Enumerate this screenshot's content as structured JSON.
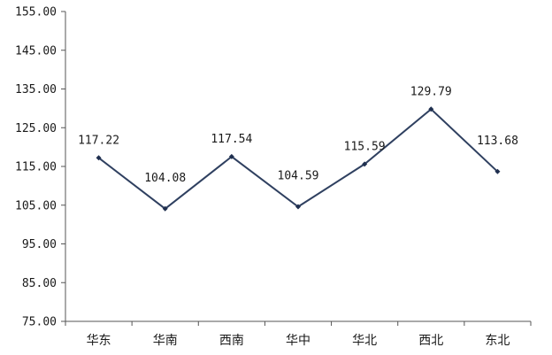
{
  "chart_data": {
    "type": "line",
    "categories": [
      "华东",
      "华南",
      "西南",
      "华中",
      "华北",
      "西北",
      "东北"
    ],
    "series": [
      {
        "values": [
          117.22,
          104.08,
          117.54,
          104.59,
          115.59,
          129.79,
          113.68
        ]
      }
    ],
    "data_labels": [
      "117.22",
      "104.08",
      "117.54",
      "104.59",
      "115.59",
      "129.79",
      "113.68"
    ],
    "y_ticks": [
      "75.00",
      "85.00",
      "95.00",
      "105.00",
      "115.00",
      "125.00",
      "135.00",
      "145.00",
      "155.00"
    ],
    "ylim": [
      75,
      155
    ],
    "grid": false,
    "legend": "none",
    "colors": {
      "line": "#2f4060",
      "marker": "#1f2f4f",
      "axis": "#555555",
      "text": "#1a1a1a"
    }
  }
}
